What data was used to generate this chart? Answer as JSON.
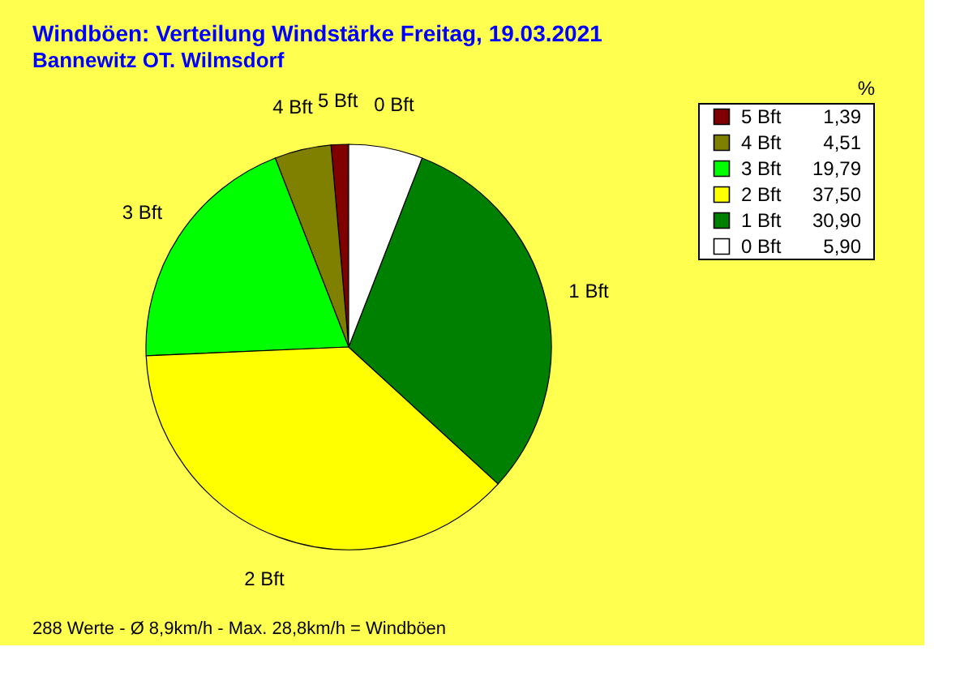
{
  "chart_data": {
    "type": "pie",
    "title": "Windböen: Verteilung Windstärke  Freitag, 19.03.2021",
    "subtitle": "Bannewitz OT. Wilmsdorf",
    "categories": [
      "5 Bft",
      "4 Bft",
      "3 Bft",
      "2 Bft",
      "1 Bft",
      "0 Bft"
    ],
    "values": [
      1.39,
      4.51,
      19.79,
      37.5,
      30.9,
      5.9
    ],
    "value_labels": [
      "1,39",
      "4,51",
      "19,79",
      "37,50",
      "30,90",
      "5,90"
    ],
    "colors": [
      "#800000",
      "#808000",
      "#00ff00",
      "#ffff00",
      "#008000",
      "#ffffff"
    ],
    "legend_title": "%",
    "legend": "top right",
    "annotations": [
      "288 Werte   -   Ø 8,9km/h  -  Max. 28,8km/h = Windböen"
    ]
  }
}
